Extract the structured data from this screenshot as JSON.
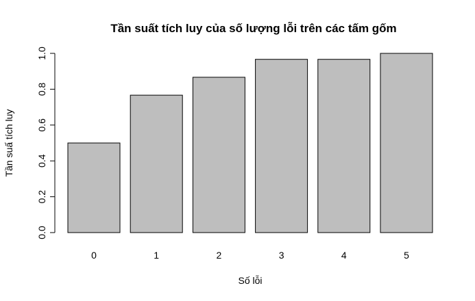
{
  "chart_data": {
    "type": "bar",
    "title": "Tần suất tích luy của số lượng lỗi trên các tấm gốm",
    "xlabel": "Số lỗi",
    "ylabel": "Tần suấ tích luy",
    "categories": [
      "0",
      "1",
      "2",
      "3",
      "4",
      "5"
    ],
    "values": [
      0.5,
      0.7667,
      0.8667,
      0.9667,
      0.9667,
      1.0
    ],
    "ylim": [
      0,
      1.0
    ],
    "yticks": [
      "0.0",
      "0.2",
      "0.4",
      "0.6",
      "0.8",
      "1.0"
    ],
    "bar_color": "#bebebe",
    "grid": false,
    "legend": "none"
  }
}
